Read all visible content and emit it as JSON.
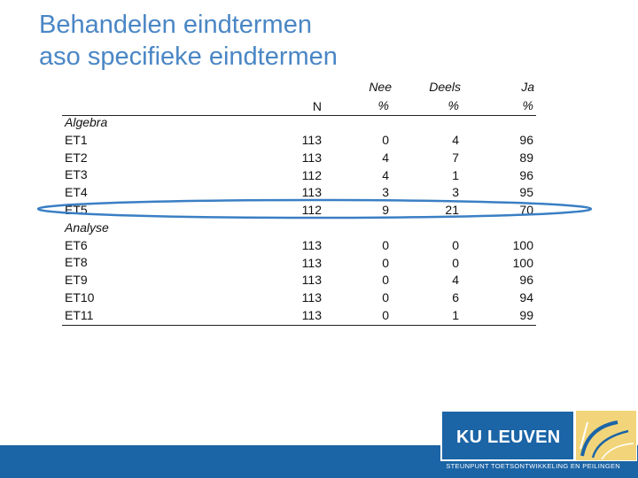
{
  "title": {
    "line1": "Behandelen eindtermen",
    "line2": "aso specifieke eindtermen"
  },
  "table": {
    "headers": {
      "n": "N",
      "nee_line1": "Nee",
      "nee_line2": "%",
      "deels_line1": "Deels",
      "deels_line2": "%",
      "ja_line1": "Ja",
      "ja_line2": "%"
    },
    "sections": [
      {
        "name": "Algebra",
        "rows": [
          {
            "label": "ET1",
            "n": "113",
            "nee": "0",
            "deels": "4",
            "ja": "96"
          },
          {
            "label": "ET2",
            "n": "113",
            "nee": "4",
            "deels": "7",
            "ja": "89"
          },
          {
            "label": "ET3",
            "n": "112",
            "nee": "4",
            "deels": "1",
            "ja": "96"
          },
          {
            "label": "ET4",
            "n": "113",
            "nee": "3",
            "deels": "3",
            "ja": "95"
          },
          {
            "label": "ET5",
            "n": "112",
            "nee": "9",
            "deels": "21",
            "ja": "70"
          }
        ]
      },
      {
        "name": "Analyse",
        "rows": [
          {
            "label": "ET6",
            "n": "113",
            "nee": "0",
            "deels": "0",
            "ja": "100"
          },
          {
            "label": "ET8",
            "n": "113",
            "nee": "0",
            "deels": "0",
            "ja": "100"
          },
          {
            "label": "ET9",
            "n": "113",
            "nee": "0",
            "deels": "4",
            "ja": "96"
          },
          {
            "label": "ET10",
            "n": "113",
            "nee": "0",
            "deels": "6",
            "ja": "94"
          },
          {
            "label": "ET11",
            "n": "113",
            "nee": "0",
            "deels": "1",
            "ja": "99"
          }
        ]
      }
    ]
  },
  "highlight": {
    "row": "ET5",
    "color": "#3a7fc4"
  },
  "logo": {
    "text": "KU LEUVEN",
    "icon": "ku-leuven-emblem-icon"
  },
  "footer": {
    "text": "STEUNPUNT TOETSONTWIKKELING EN PEILINGEN"
  },
  "colors": {
    "title": "#4a86c5",
    "brand": "#1b64a6",
    "accent": "#f2d57a"
  }
}
